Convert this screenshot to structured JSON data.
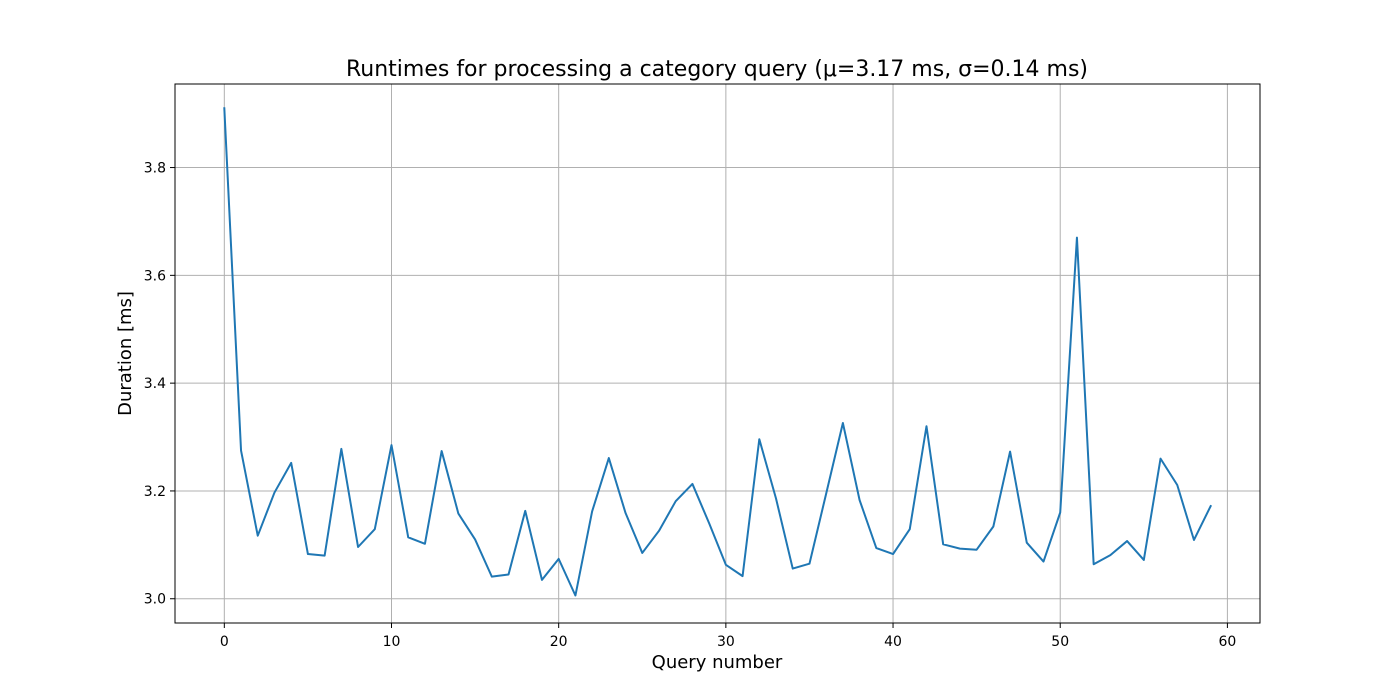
{
  "chart_data": {
    "type": "line",
    "title": "Runtimes for processing a category query (μ=3.17 ms, σ=0.14 ms)",
    "xlabel": "Query number",
    "ylabel": "Duration [ms]",
    "xlim": [
      -2.95,
      61.95
    ],
    "ylim": [
      2.955,
      3.955
    ],
    "xticks": [
      0,
      10,
      20,
      30,
      40,
      50,
      60
    ],
    "xtick_labels": [
      "0",
      "10",
      "20",
      "30",
      "40",
      "50",
      "60"
    ],
    "yticks": [
      3.0,
      3.2,
      3.4,
      3.6,
      3.8
    ],
    "ytick_labels": [
      "3.0",
      "3.2",
      "3.4",
      "3.6",
      "3.8"
    ],
    "grid": true,
    "series": [
      {
        "color": "#1f77b4",
        "x": [
          0,
          1,
          2,
          3,
          4,
          5,
          6,
          7,
          8,
          9,
          10,
          11,
          12,
          13,
          14,
          15,
          16,
          17,
          18,
          19,
          20,
          21,
          22,
          23,
          24,
          25,
          26,
          27,
          28,
          29,
          30,
          31,
          32,
          33,
          34,
          35,
          36,
          37,
          38,
          39,
          40,
          41,
          42,
          43,
          44,
          45,
          46,
          47,
          48,
          49,
          50,
          51,
          52,
          53,
          54,
          55,
          56,
          57,
          58,
          59
        ],
        "values": [
          3.91,
          3.275,
          3.117,
          3.197,
          3.252,
          3.083,
          3.08,
          3.278,
          3.096,
          3.129,
          3.285,
          3.114,
          3.102,
          3.274,
          3.158,
          3.11,
          3.041,
          3.045,
          3.163,
          3.035,
          3.074,
          3.006,
          3.162,
          3.261,
          3.159,
          3.085,
          3.126,
          3.181,
          3.213,
          3.14,
          3.063,
          3.042,
          3.296,
          3.186,
          3.056,
          3.065,
          3.195,
          3.326,
          3.183,
          3.094,
          3.083,
          3.129,
          3.32,
          3.101,
          3.093,
          3.091,
          3.134,
          3.273,
          3.104,
          3.069,
          3.16,
          3.67,
          3.064,
          3.081,
          3.107,
          3.072,
          3.26,
          3.211,
          3.109,
          3.172
        ]
      }
    ]
  }
}
